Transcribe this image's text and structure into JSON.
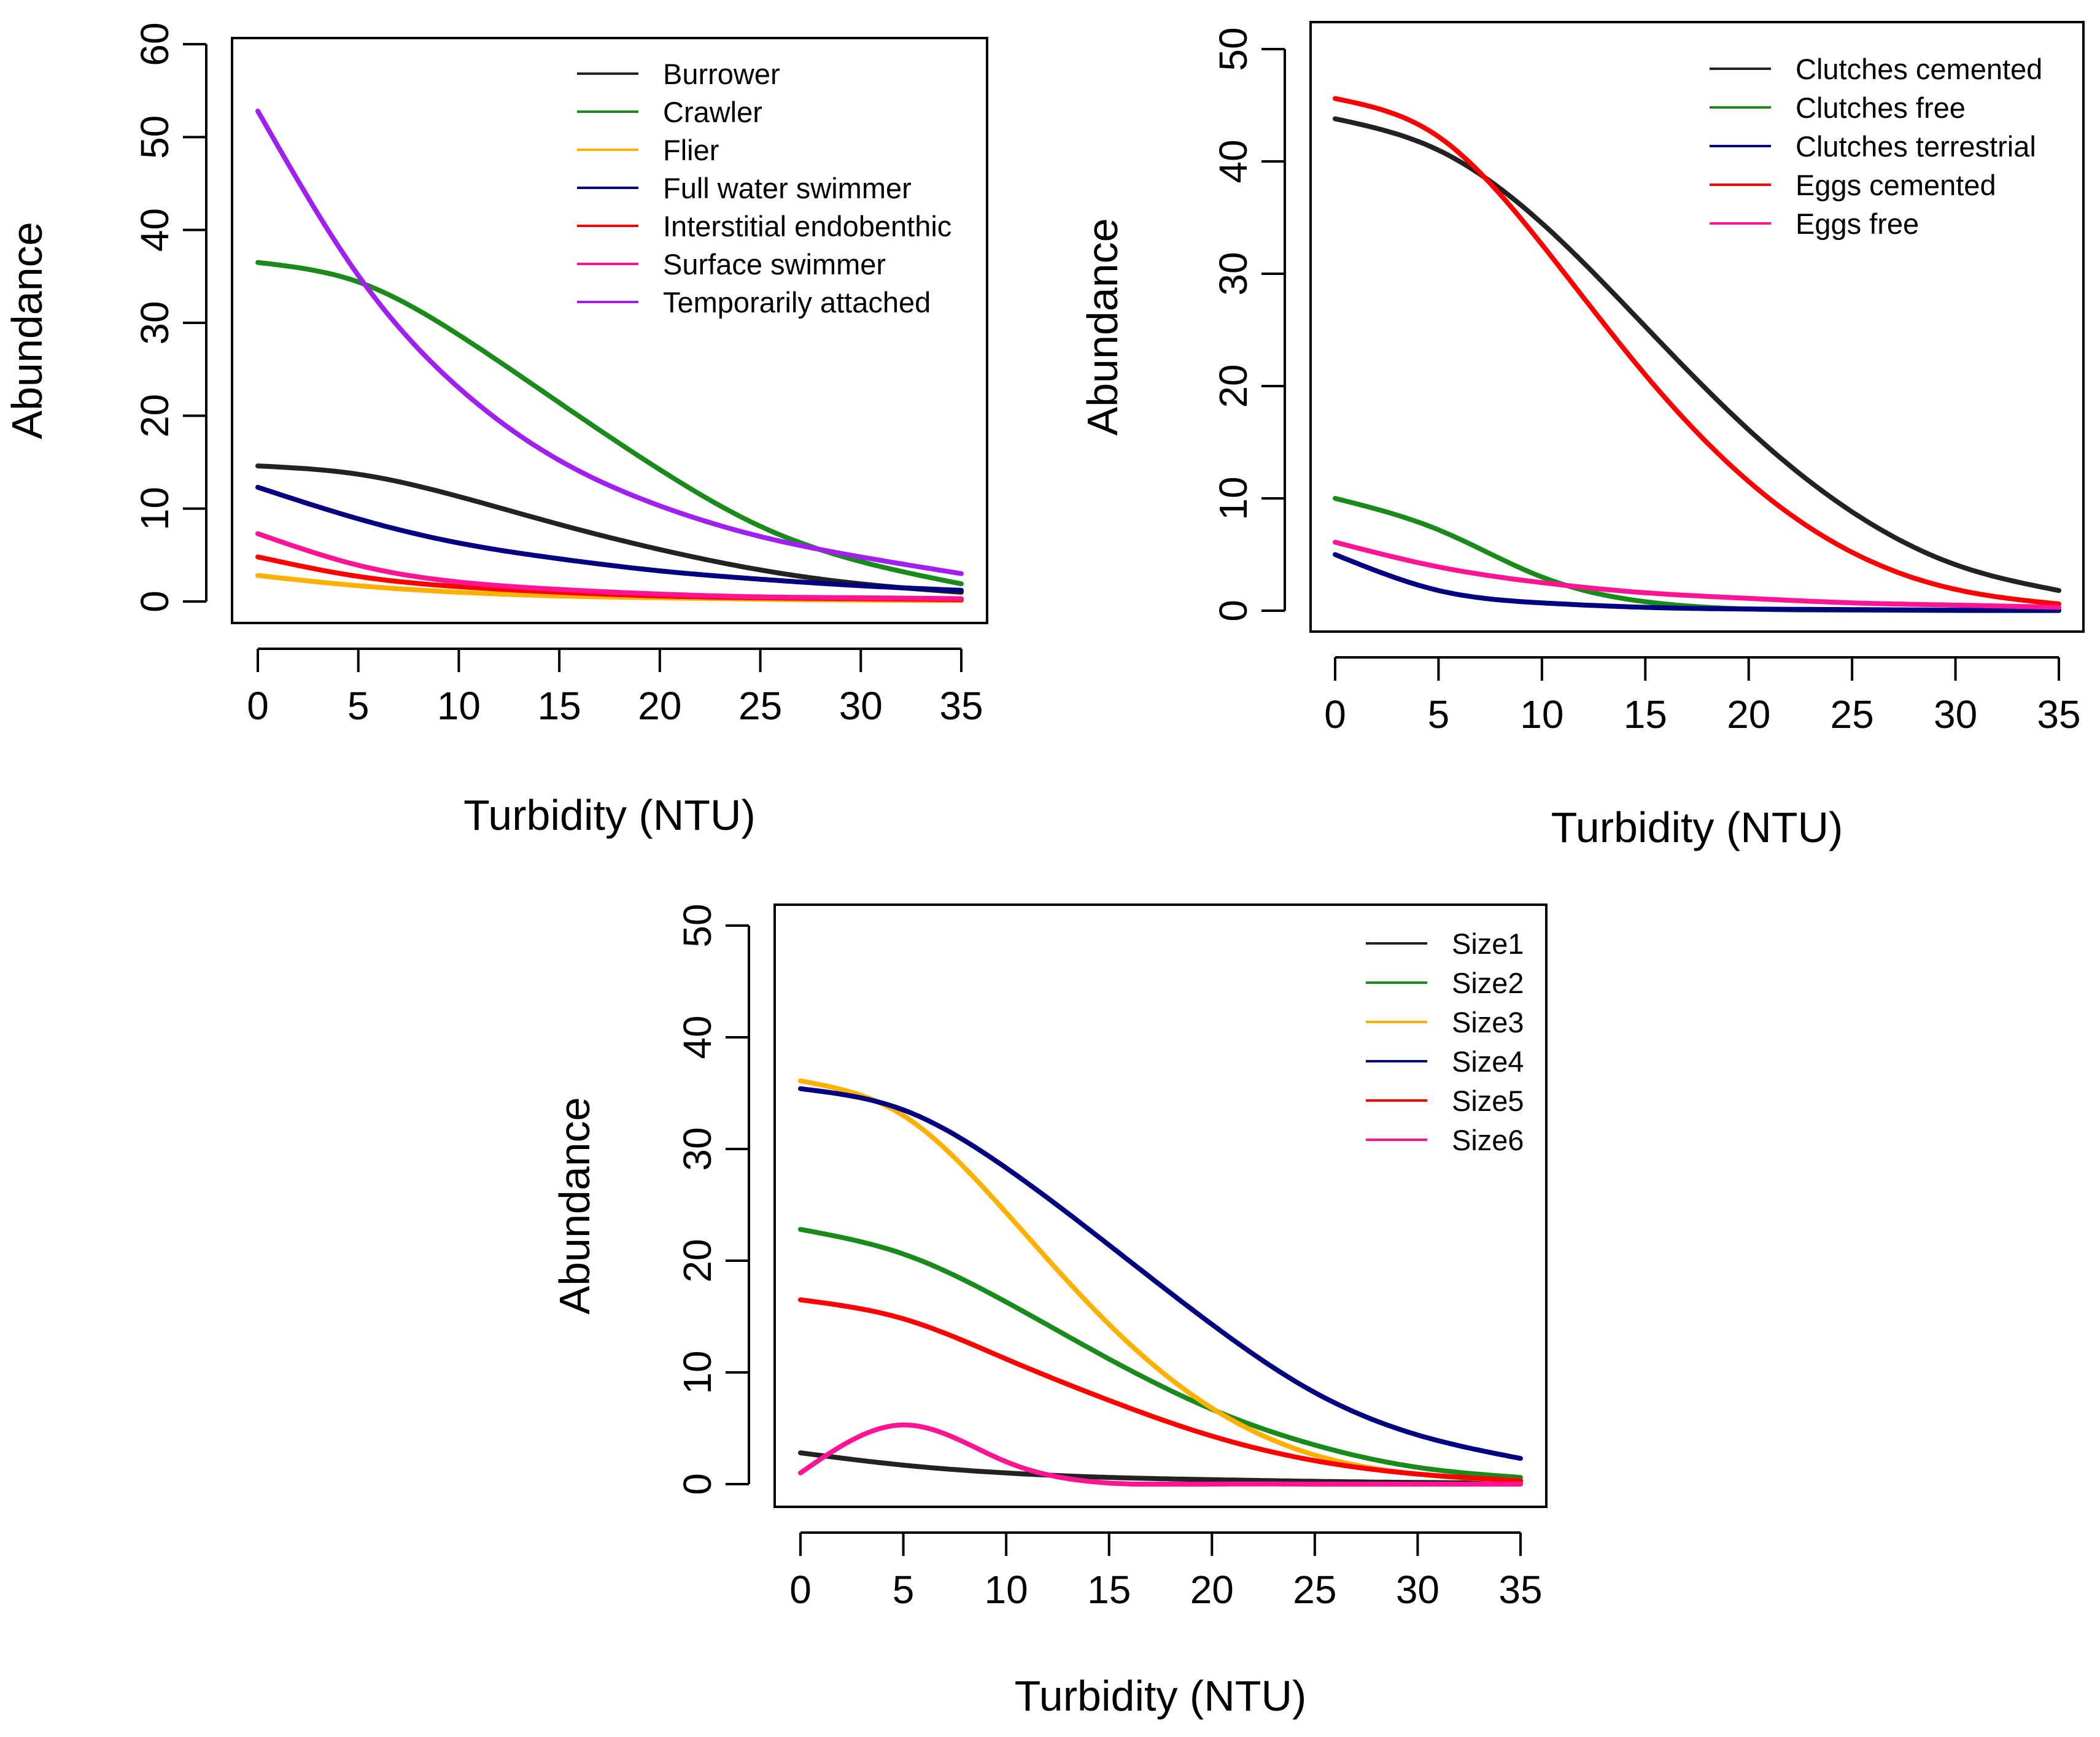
{
  "chart_data": [
    {
      "id": "locomotion",
      "type": "line",
      "title": "",
      "xlabel": "Turbidity (NTU)",
      "ylabel": "Abundance",
      "xlim": [
        0,
        35
      ],
      "ylim": [
        0,
        60
      ],
      "xticks": [
        0,
        5,
        10,
        15,
        20,
        25,
        30,
        35
      ],
      "yticks": [
        0,
        10,
        20,
        30,
        40,
        50,
        60
      ],
      "legend_position": "top-right",
      "x": [
        0,
        5,
        10,
        15,
        20,
        25,
        30,
        35
      ],
      "series": [
        {
          "name": "Burrower",
          "color": "#222222",
          "values": [
            14.6,
            13.7,
            11.3,
            8.3,
            5.6,
            3.4,
            1.9,
            1.0
          ]
        },
        {
          "name": "Crawler",
          "color": "#1a8a1a",
          "values": [
            36.5,
            34.4,
            28.7,
            21.4,
            14.2,
            8.1,
            4.3,
            1.9
          ]
        },
        {
          "name": "Flier",
          "color": "#ffb000",
          "values": [
            2.8,
            1.7,
            1.0,
            0.6,
            0.4,
            0.25,
            0.15,
            0.1
          ]
        },
        {
          "name": "Full water swimmer",
          "color": "#000080",
          "values": [
            12.3,
            8.9,
            6.3,
            4.6,
            3.3,
            2.4,
            1.7,
            1.2
          ]
        },
        {
          "name": "Interstitial endobenthic",
          "color": "#ff0000",
          "values": [
            4.8,
            2.7,
            1.6,
            1.0,
            0.6,
            0.4,
            0.3,
            0.2
          ]
        },
        {
          "name": "Surface swimmer",
          "color": "#ff1493",
          "values": [
            7.3,
            3.9,
            2.1,
            1.3,
            0.8,
            0.5,
            0.4,
            0.3
          ]
        },
        {
          "name": "Temporarily attached",
          "color": "#a020f0",
          "values": [
            52.8,
            35.1,
            23.0,
            15.2,
            10.3,
            7.0,
            4.8,
            3.0
          ]
        }
      ]
    },
    {
      "id": "reproduction",
      "type": "line",
      "title": "",
      "xlabel": "Turbidity (NTU)",
      "ylabel": "Abundance",
      "xlim": [
        0,
        35
      ],
      "ylim": [
        0,
        50
      ],
      "xticks": [
        0,
        5,
        10,
        15,
        20,
        25,
        30,
        35
      ],
      "yticks": [
        0,
        10,
        20,
        30,
        40,
        50
      ],
      "legend_position": "top-right",
      "x": [
        0,
        5,
        10,
        15,
        20,
        25,
        30,
        35
      ],
      "series": [
        {
          "name": "Clutches cemented",
          "color": "#222222",
          "values": [
            43.8,
            41.0,
            34.5,
            25.3,
            16.1,
            8.8,
            4.1,
            1.8
          ]
        },
        {
          "name": "Clutches free",
          "color": "#1a8a1a",
          "values": [
            10.0,
            7.2,
            3.0,
            0.8,
            0.15,
            0.05,
            0.02,
            0.01
          ]
        },
        {
          "name": "Clutches terrestrial",
          "color": "#000080",
          "values": [
            5.0,
            1.8,
            0.7,
            0.3,
            0.15,
            0.1,
            0.05,
            0.03
          ]
        },
        {
          "name": "Eggs cemented",
          "color": "#ff0000",
          "values": [
            45.6,
            42.2,
            32.6,
            21.0,
            11.5,
            5.2,
            1.9,
            0.6
          ]
        },
        {
          "name": "Eggs free",
          "color": "#ff1493",
          "values": [
            6.1,
            3.9,
            2.5,
            1.6,
            1.1,
            0.7,
            0.5,
            0.3
          ]
        }
      ]
    },
    {
      "id": "body-size",
      "type": "line",
      "title": "",
      "xlabel": "Turbidity (NTU)",
      "ylabel": "Abundance",
      "xlim": [
        0,
        35
      ],
      "ylim": [
        0,
        50
      ],
      "xticks": [
        0,
        5,
        10,
        15,
        20,
        25,
        30,
        35
      ],
      "yticks": [
        0,
        10,
        20,
        30,
        40,
        50
      ],
      "legend_position": "top-right",
      "x": [
        0,
        5,
        10,
        15,
        20,
        25,
        30,
        35
      ],
      "series": [
        {
          "name": "Size1",
          "color": "#222222",
          "values": [
            2.8,
            1.7,
            1.0,
            0.6,
            0.4,
            0.25,
            0.15,
            0.1
          ]
        },
        {
          "name": "Size2",
          "color": "#1a8a1a",
          "values": [
            22.8,
            20.6,
            16.3,
            11.2,
            6.7,
            3.5,
            1.5,
            0.6
          ]
        },
        {
          "name": "Size3",
          "color": "#ffb000",
          "values": [
            36.1,
            33.0,
            24.3,
            14.3,
            6.8,
            2.6,
            0.9,
            0.3
          ]
        },
        {
          "name": "Size4",
          "color": "#000080",
          "values": [
            35.4,
            33.5,
            28.3,
            21.4,
            14.3,
            8.2,
            4.4,
            2.3
          ]
        },
        {
          "name": "Size5",
          "color": "#ff0000",
          "values": [
            16.5,
            14.8,
            11.2,
            7.5,
            4.3,
            2.1,
            0.9,
            0.3
          ]
        },
        {
          "name": "Size6",
          "color": "#ff1493",
          "values": [
            1.0,
            5.3,
            2.0,
            0.1,
            0.0,
            0.0,
            0.0,
            0.0
          ]
        }
      ]
    }
  ]
}
